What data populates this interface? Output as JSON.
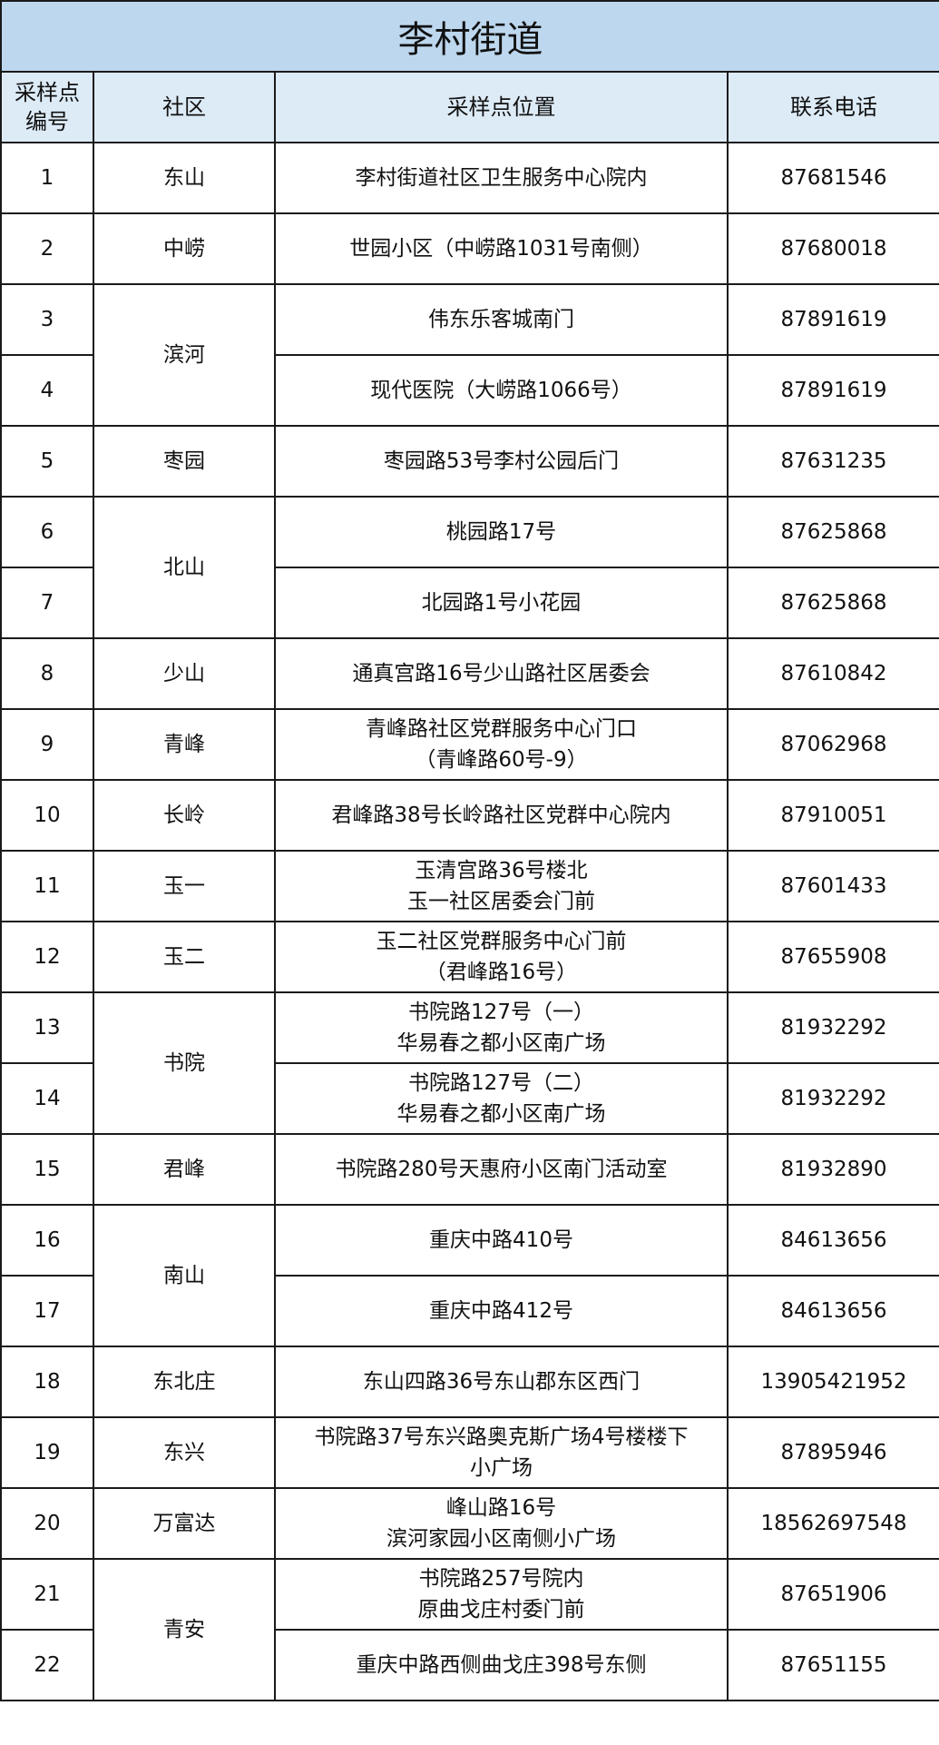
{
  "title": "李村街道",
  "headers": [
    "采样点\n编号",
    "社区",
    "采样点位置",
    "联系电话"
  ],
  "colors": {
    "title_bg": "#bdd7ee",
    "header_bg": "#ddebf7"
  },
  "rows": [
    {
      "no": "1",
      "community": "东山",
      "span": 1,
      "location": "李村街道社区卫生服务中心院内",
      "phone": "87681546"
    },
    {
      "no": "2",
      "community": "中崂",
      "span": 1,
      "location": "世园小区（中崂路1031号南侧）",
      "phone": "87680018"
    },
    {
      "no": "3",
      "community": "滨河",
      "span": 2,
      "location": "伟东乐客城南门",
      "phone": "87891619"
    },
    {
      "no": "4",
      "community": null,
      "location": "现代医院（大崂路1066号）",
      "phone": "87891619"
    },
    {
      "no": "5",
      "community": "枣园",
      "span": 1,
      "location": "枣园路53号李村公园后门",
      "phone": "87631235"
    },
    {
      "no": "6",
      "community": "北山",
      "span": 2,
      "location": "桃园路17号",
      "phone": "87625868"
    },
    {
      "no": "7",
      "community": null,
      "location": "北园路1号小花园",
      "phone": "87625868"
    },
    {
      "no": "8",
      "community": "少山",
      "span": 1,
      "location": "通真宫路16号少山路社区居委会",
      "phone": "87610842"
    },
    {
      "no": "9",
      "community": "青峰",
      "span": 1,
      "location": "青峰路社区党群服务中心门口\n（青峰路60号-9）",
      "phone": "87062968"
    },
    {
      "no": "10",
      "community": "长岭",
      "span": 1,
      "location": "君峰路38号长岭路社区党群中心院内",
      "phone": "87910051"
    },
    {
      "no": "11",
      "community": "玉一",
      "span": 1,
      "location": "玉清宫路36号楼北\n玉一社区居委会门前",
      "phone": "87601433"
    },
    {
      "no": "12",
      "community": "玉二",
      "span": 1,
      "location": "玉二社区党群服务中心门前\n（君峰路16号）",
      "phone": "87655908"
    },
    {
      "no": "13",
      "community": "书院",
      "span": 2,
      "location": "书院路127号（一）\n华易春之都小区南广场",
      "phone": "81932292"
    },
    {
      "no": "14",
      "community": null,
      "location": "书院路127号（二）\n华易春之都小区南广场",
      "phone": "81932292"
    },
    {
      "no": "15",
      "community": "君峰",
      "span": 1,
      "location": "书院路280号天惠府小区南门活动室",
      "phone": "81932890"
    },
    {
      "no": "16",
      "community": "南山",
      "span": 2,
      "location": "重庆中路410号",
      "phone": "84613656"
    },
    {
      "no": "17",
      "community": null,
      "location": "重庆中路412号",
      "phone": "84613656"
    },
    {
      "no": "18",
      "community": "东北庄",
      "span": 1,
      "location": "东山四路36号东山郡东区西门",
      "phone": "13905421952"
    },
    {
      "no": "19",
      "community": "东兴",
      "span": 1,
      "location": "书院路37号东兴路奥克斯广场4号楼楼下\n小广场",
      "phone": "87895946"
    },
    {
      "no": "20",
      "community": "万富达",
      "span": 1,
      "location": "峰山路16号\n滨河家园小区南侧小广场",
      "phone": "18562697548"
    },
    {
      "no": "21",
      "community": "青安",
      "span": 2,
      "location": "书院路257号院内\n原曲戈庄村委门前",
      "phone": "87651906"
    },
    {
      "no": "22",
      "community": null,
      "location": "重庆中路西侧曲戈庄398号东侧",
      "phone": "87651155"
    }
  ]
}
